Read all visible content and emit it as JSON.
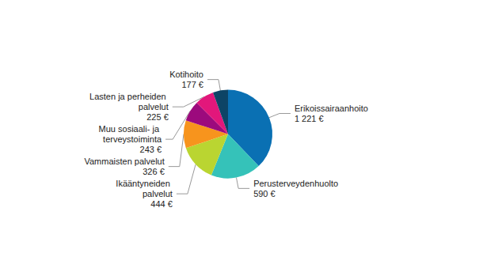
{
  "chart_data": {
    "type": "pie",
    "categories": [
      "Erikoissairaanhoito",
      "Perusterveydenhuolto",
      "Ikääntyneiden palvelut",
      "Vammaisten palvelut",
      "Muu sosiaali- ja terveystoiminta",
      "Lasten ja perheiden palvelut",
      "Kotihoito"
    ],
    "values": [
      1221,
      590,
      444,
      326,
      243,
      225,
      177
    ],
    "value_labels": [
      "1 221 €",
      "590 €",
      "444 €",
      "326 €",
      "243 €",
      "225 €",
      "177 €"
    ],
    "colors": [
      "#0a70b3",
      "#35c2b9",
      "#bad531",
      "#f7941d",
      "#9c0a7d",
      "#e2177b",
      "#0d4466"
    ],
    "data_labels": true
  }
}
